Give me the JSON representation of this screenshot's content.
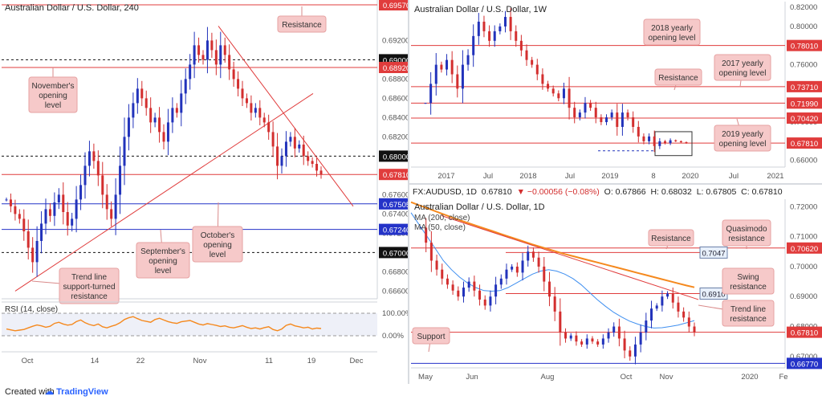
{
  "footer": {
    "created_label": "Created with",
    "brand": "TradingView"
  },
  "chart_data": [
    {
      "type": "line",
      "title": "Australian Dollar / U.S. Dollar, 240",
      "x_ticks": [
        "Oct",
        "14",
        "22",
        "Nov",
        "11",
        "19",
        "Dec"
      ],
      "y_ticks": [
        "0.69200",
        "0.69000",
        "0.68800",
        "0.68600",
        "0.68400",
        "0.68200",
        "0.68000",
        "0.67800",
        "0.67600",
        "0.67400",
        "0.67200",
        "0.67000",
        "0.66800",
        "0.66600"
      ],
      "ylim": [
        0.6652,
        0.6962
      ],
      "levels": [
        {
          "label": "0.69570",
          "value": 0.6957,
          "color": "#e03c3c"
        },
        {
          "label": "0.69000",
          "value": 0.69,
          "color": "#111111"
        },
        {
          "label": "0.68920",
          "value": 0.6892,
          "color": "#e03c3c"
        },
        {
          "label": "0.68000",
          "value": 0.68,
          "color": "#111111"
        },
        {
          "label": "0.67810",
          "value": 0.6781,
          "color": "#e03c3c"
        },
        {
          "label": "0.67505",
          "value": 0.67505,
          "color": "#2433c8"
        },
        {
          "label": "0.67240",
          "value": 0.6724,
          "color": "#2433c8"
        },
        {
          "label": "0.67000",
          "value": 0.67,
          "color": "#111111"
        }
      ],
      "annotations": [
        "Resistance",
        "November's opening level",
        "September's opening level",
        "October's opening level",
        "Trend line support-turned resistance"
      ],
      "series_close": [
        0.6755,
        0.6748,
        0.674,
        0.6735,
        0.6722,
        0.6705,
        0.669,
        0.6712,
        0.673,
        0.6745,
        0.6738,
        0.6752,
        0.676,
        0.6742,
        0.6728,
        0.6735,
        0.6755,
        0.677,
        0.679,
        0.6805,
        0.6795,
        0.678,
        0.676,
        0.6745,
        0.6735,
        0.676,
        0.679,
        0.682,
        0.684,
        0.6855,
        0.687,
        0.686,
        0.685,
        0.6835,
        0.684,
        0.6825,
        0.6815,
        0.6835,
        0.685,
        0.6845,
        0.6865,
        0.688,
        0.6895,
        0.6915,
        0.6905,
        0.69,
        0.692,
        0.691,
        0.6895,
        0.6915,
        0.6905,
        0.689,
        0.688,
        0.687,
        0.686,
        0.6855,
        0.6845,
        0.685,
        0.684,
        0.6835,
        0.6825,
        0.681,
        0.679,
        0.68,
        0.6815,
        0.682,
        0.6808,
        0.6812,
        0.68,
        0.6795,
        0.6792,
        0.6785,
        0.6781
      ],
      "rsi": {
        "label": "RSI (14, close)",
        "ticks": [
          "100.00%",
          "0.00%"
        ],
        "values": [
          30,
          26,
          22,
          25,
          28,
          35,
          42,
          48,
          44,
          38,
          42,
          55,
          60,
          52,
          47,
          50,
          63,
          70,
          58,
          50,
          45,
          52,
          40,
          35,
          42,
          48,
          58,
          72,
          80,
          85,
          76,
          68,
          64,
          60,
          72,
          78,
          70,
          63,
          58,
          55,
          62,
          65,
          68,
          60,
          52,
          48,
          54,
          50,
          46,
          41,
          44,
          38,
          35,
          40,
          45,
          38,
          32,
          35,
          30,
          36,
          40,
          28,
          22,
          30,
          46,
          52,
          44,
          40,
          35,
          38,
          30,
          34,
          32
        ]
      }
    },
    {
      "type": "line",
      "title": "Australian Dollar / U.S. Dollar, 1W",
      "x_ticks": [
        "2017",
        "Jul",
        "2018",
        "Jul",
        "2019",
        "8",
        "2020",
        "Jul",
        "2021"
      ],
      "y_ticks": [
        "0.82000",
        "0.80000",
        "0.78000",
        "0.76000",
        "0.74000",
        "0.72000",
        "0.70000",
        "0.68000",
        "0.66000"
      ],
      "ylim": [
        0.653,
        0.826
      ],
      "levels": [
        {
          "label": "0.78010",
          "value": 0.7801,
          "color": "#e03c3c"
        },
        {
          "label": "0.73710",
          "value": 0.7371,
          "color": "#e03c3c"
        },
        {
          "label": "0.71990",
          "value": 0.7199,
          "color": "#e03c3c"
        },
        {
          "label": "0.70420",
          "value": 0.7042,
          "color": "#e03c3c"
        },
        {
          "label": "0.67810",
          "value": 0.6781,
          "color": "#e03c3c"
        }
      ],
      "annotations": [
        "2018 yearly opening level",
        "2017 yearly opening level",
        "Resistance",
        "2019 yearly opening level"
      ],
      "series_close": [
        0.72,
        0.74,
        0.76,
        0.755,
        0.765,
        0.75,
        0.735,
        0.76,
        0.77,
        0.79,
        0.805,
        0.795,
        0.785,
        0.795,
        0.8,
        0.81,
        0.795,
        0.785,
        0.775,
        0.765,
        0.76,
        0.75,
        0.74,
        0.735,
        0.73,
        0.725,
        0.735,
        0.715,
        0.705,
        0.71,
        0.72,
        0.715,
        0.705,
        0.7,
        0.705,
        0.71,
        0.695,
        0.71,
        0.705,
        0.695,
        0.685,
        0.68,
        0.685,
        0.675,
        0.68,
        0.678,
        0.681,
        0.68,
        0.679,
        0.6781
      ]
    },
    {
      "type": "line",
      "title": "Australian Dollar / U.S. Dollar, 1D",
      "symbol_line": {
        "symbol": "FX:AUDUSD, 1D",
        "price": "0.67810",
        "change": "▼ −0.00056 (−0.08%)",
        "O": "O: 0.67866",
        "H": "H: 0.68032",
        "L": "L: 0.67805",
        "C": "C: 0.67810"
      },
      "x_ticks": [
        "May",
        "Jun",
        "Aug",
        "Oct",
        "Nov",
        "2020",
        "Fe"
      ],
      "y_ticks": [
        "0.72000",
        "0.71000",
        "0.70000",
        "0.69000",
        "0.68000",
        "0.67000"
      ],
      "ylim": [
        0.6662,
        0.7225
      ],
      "ma_labels": [
        "MA (200, close)",
        "MA (50, close)"
      ],
      "levels": [
        {
          "label": "0.70620",
          "value": 0.7062,
          "color": "#e03c3c"
        },
        {
          "label": "0.67810",
          "value": 0.6781,
          "color": "#e03c3c"
        },
        {
          "label": "0.66770",
          "value": 0.6677,
          "color": "#2433c8"
        }
      ],
      "level_tags": [
        {
          "label": "0.7047",
          "value": 0.7047
        },
        {
          "label": "0.6910",
          "value": 0.691
        }
      ],
      "annotations": [
        "Resistance",
        "Quasimodo resistance",
        "Swing resistance",
        "Trend line resistance",
        "Support"
      ],
      "series_close": [
        0.713,
        0.708,
        0.702,
        0.699,
        0.696,
        0.694,
        0.692,
        0.69,
        0.693,
        0.695,
        0.692,
        0.689,
        0.687,
        0.69,
        0.694,
        0.696,
        0.699,
        0.7,
        0.698,
        0.702,
        0.705,
        0.703,
        0.7,
        0.695,
        0.69,
        0.685,
        0.678,
        0.676,
        0.677,
        0.675,
        0.674,
        0.676,
        0.675,
        0.674,
        0.676,
        0.678,
        0.68,
        0.676,
        0.672,
        0.67,
        0.674,
        0.678,
        0.682,
        0.686,
        0.687,
        0.69,
        0.691,
        0.688,
        0.685,
        0.683,
        0.68,
        0.6781
      ],
      "ma200": [
        0.7215,
        0.7205,
        0.7195,
        0.7185,
        0.7175,
        0.7165,
        0.7155,
        0.7146,
        0.7137,
        0.7128,
        0.7119,
        0.711,
        0.7101,
        0.7092,
        0.7083,
        0.7074,
        0.7066,
        0.7058,
        0.705,
        0.7042,
        0.7035,
        0.7028,
        0.7021,
        0.7014,
        0.7007,
        0.7,
        0.6993,
        0.6986,
        0.6979,
        0.6972,
        0.6965,
        0.6958,
        0.6951,
        0.6944,
        0.6937,
        0.6931
      ],
      "ma50": [
        0.718,
        0.714,
        0.71,
        0.706,
        0.702,
        0.699,
        0.6965,
        0.6945,
        0.693,
        0.692,
        0.6918,
        0.692,
        0.693,
        0.6945,
        0.696,
        0.6975,
        0.6985,
        0.699,
        0.6985,
        0.6975,
        0.696,
        0.694,
        0.6915,
        0.689,
        0.6868,
        0.6848,
        0.6832,
        0.6818,
        0.6808,
        0.68,
        0.6795,
        0.6796,
        0.68,
        0.6805,
        0.6812,
        0.682
      ]
    }
  ]
}
